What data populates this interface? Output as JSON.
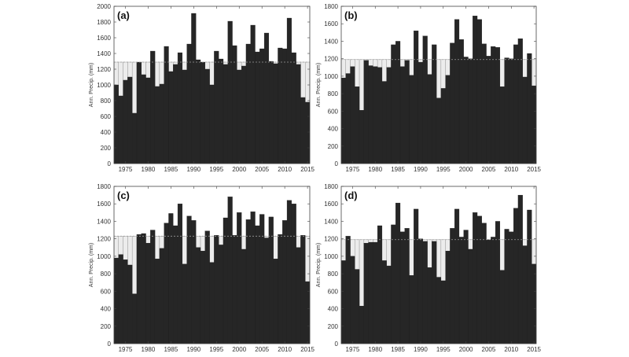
{
  "figure": {
    "x_tick_labels": [
      "1975",
      "1980",
      "1985",
      "1990",
      "1995",
      "2000",
      "2005",
      "2010",
      "2015"
    ],
    "colors": {
      "bar": "#262626",
      "deficit_fill": "#ececec",
      "mean_line": "#999999",
      "axis": "#444444"
    }
  },
  "chart_data": [
    {
      "type": "bar",
      "panel_label": "(a)",
      "ylabel": "Ann. Precip. (mm)",
      "ylim": [
        0,
        2000
      ],
      "yticks": [
        0,
        200,
        400,
        600,
        800,
        1000,
        1200,
        1400,
        1600,
        1800,
        2000
      ],
      "xlim": [
        1972.5,
        2015.5
      ],
      "reference_mean": 1290,
      "years": [
        1973,
        1974,
        1975,
        1976,
        1977,
        1978,
        1979,
        1980,
        1981,
        1982,
        1983,
        1984,
        1985,
        1986,
        1987,
        1988,
        1989,
        1990,
        1991,
        1992,
        1993,
        1994,
        1995,
        1996,
        1997,
        1998,
        1999,
        2000,
        2001,
        2002,
        2003,
        2004,
        2005,
        2006,
        2007,
        2008,
        2009,
        2010,
        2011,
        2012,
        2013,
        2014,
        2015
      ],
      "values": [
        1000,
        860,
        1060,
        1100,
        640,
        1290,
        1130,
        1090,
        1430,
        980,
        1010,
        1490,
        1170,
        1260,
        1410,
        1190,
        1520,
        1910,
        1320,
        1290,
        1200,
        1000,
        1430,
        1330,
        1260,
        1810,
        1500,
        1190,
        1240,
        1520,
        1760,
        1420,
        1460,
        1660,
        1300,
        1270,
        1470,
        1460,
        1850,
        1410,
        1260,
        840,
        780
      ]
    },
    {
      "type": "bar",
      "panel_label": "(b)",
      "ylabel": "Ann. Precip. (mm)",
      "ylim": [
        0,
        1800
      ],
      "yticks": [
        0,
        200,
        400,
        600,
        800,
        1000,
        1200,
        1400,
        1600,
        1800
      ],
      "xlim": [
        1972.5,
        2015.5
      ],
      "reference_mean": 1190,
      "years": [
        1973,
        1974,
        1975,
        1976,
        1977,
        1978,
        1979,
        1980,
        1981,
        1982,
        1983,
        1984,
        1985,
        1986,
        1987,
        1988,
        1989,
        1990,
        1991,
        1992,
        1993,
        1994,
        1995,
        1996,
        1997,
        1998,
        1999,
        2000,
        2001,
        2002,
        2003,
        2004,
        2005,
        2006,
        2007,
        2008,
        2009,
        2010,
        2011,
        2012,
        2013,
        2014,
        2015
      ],
      "values": [
        980,
        1030,
        1110,
        880,
        610,
        1180,
        1120,
        1110,
        1100,
        940,
        1100,
        1360,
        1400,
        1110,
        1180,
        1010,
        1520,
        1160,
        1460,
        1020,
        1360,
        750,
        860,
        1010,
        1380,
        1650,
        1420,
        1220,
        1200,
        1690,
        1650,
        1370,
        1230,
        1340,
        1330,
        880,
        1210,
        1200,
        1360,
        1430,
        990,
        1260,
        890
      ]
    },
    {
      "type": "bar",
      "panel_label": "(c)",
      "ylabel": "Ann. Precip. (mm)",
      "ylim": [
        0,
        1800
      ],
      "yticks": [
        0,
        200,
        400,
        600,
        800,
        1000,
        1200,
        1400,
        1600,
        1800
      ],
      "xlim": [
        1972.5,
        2015.5
      ],
      "reference_mean": 1230,
      "years": [
        1973,
        1974,
        1975,
        1976,
        1977,
        1978,
        1979,
        1980,
        1981,
        1982,
        1983,
        1984,
        1985,
        1986,
        1987,
        1988,
        1989,
        1990,
        1991,
        1992,
        1993,
        1994,
        1995,
        1996,
        1997,
        1998,
        1999,
        2000,
        2001,
        2002,
        2003,
        2004,
        2005,
        2006,
        2007,
        2008,
        2009,
        2010,
        2011,
        2012,
        2013,
        2014,
        2015
      ],
      "values": [
        980,
        1020,
        960,
        900,
        570,
        1250,
        1260,
        1150,
        1300,
        970,
        1090,
        1380,
        1490,
        1350,
        1600,
        910,
        1460,
        1410,
        1100,
        1060,
        1290,
        930,
        1240,
        1130,
        1440,
        1680,
        1240,
        1500,
        1080,
        1420,
        1510,
        1350,
        1480,
        1210,
        1450,
        970,
        1250,
        1410,
        1640,
        1600,
        1100,
        1240,
        710
      ]
    },
    {
      "type": "bar",
      "panel_label": "(d)",
      "ylabel": "Ann. Precip. (mm)",
      "ylim": [
        0,
        1800
      ],
      "yticks": [
        0,
        200,
        400,
        600,
        800,
        1000,
        1200,
        1400,
        1600,
        1800
      ],
      "xlim": [
        1972.5,
        2015.5
      ],
      "reference_mean": 1190,
      "years": [
        1973,
        1974,
        1975,
        1976,
        1977,
        1978,
        1979,
        1980,
        1981,
        1982,
        1983,
        1984,
        1985,
        1986,
        1987,
        1988,
        1989,
        1990,
        1991,
        1992,
        1993,
        1994,
        1995,
        1996,
        1997,
        1998,
        1999,
        2000,
        2001,
        2002,
        2003,
        2004,
        2005,
        2006,
        2007,
        2008,
        2009,
        2010,
        2011,
        2012,
        2013,
        2014,
        2015
      ],
      "values": [
        950,
        1230,
        1000,
        850,
        430,
        1150,
        1160,
        1160,
        1350,
        950,
        890,
        1360,
        1610,
        1280,
        1320,
        780,
        1540,
        1200,
        1170,
        870,
        1170,
        760,
        720,
        1060,
        1320,
        1540,
        1220,
        1300,
        1080,
        1500,
        1460,
        1380,
        1190,
        1220,
        1400,
        840,
        1310,
        1280,
        1550,
        1700,
        1120,
        1530,
        910
      ]
    }
  ]
}
